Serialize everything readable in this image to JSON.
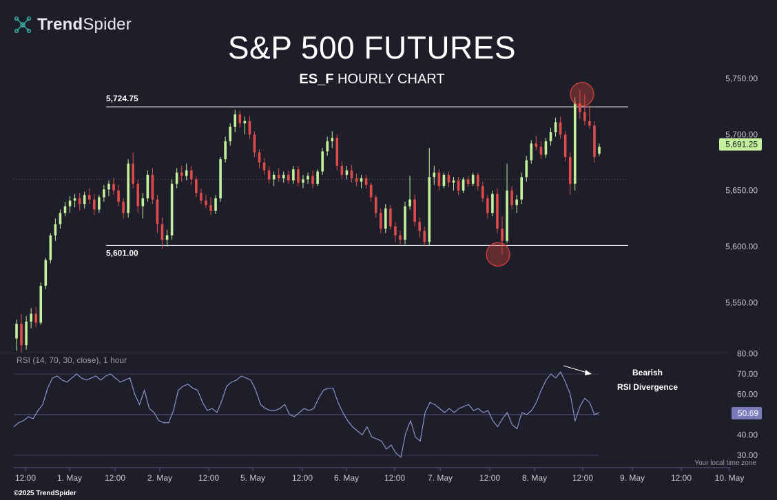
{
  "brand": {
    "name_bold": "Trend",
    "name_regular": "Spider",
    "logo_icon": "network-nodes-icon"
  },
  "copyright": "©2025 TrendSpider",
  "local_time_zone": "Your local time zone",
  "chart_data": [
    {
      "type": "candlestick",
      "title": "S&P 500 FUTURES",
      "subtitle_symbol": "ES_F",
      "subtitle_text": "HOURLY CHART",
      "y_ticks": [
        "5,750.00",
        "5,700.00",
        "5,650.00",
        "5,600.00",
        "5,550.00"
      ],
      "y_tick_values": [
        5750,
        5700,
        5650,
        5600,
        5550
      ],
      "ylim": [
        5505,
        5790
      ],
      "x_ticks": [
        "12:00",
        "1. May",
        "12:00",
        "2. May",
        "12:00",
        "5. May",
        "12:00",
        "6. May",
        "12:00",
        "7. May",
        "12:00",
        "8. May",
        "12:00",
        "9. May",
        "12:00",
        "10. May"
      ],
      "last_price": "5,691.25",
      "reference_price": 5660,
      "resistance": {
        "label": "5,724.75",
        "value": 5724.75
      },
      "support": {
        "label": "5,601.00",
        "value": 5601.0
      },
      "highlights": [
        {
          "point": "top",
          "price": 5736
        },
        {
          "point": "bottom",
          "price": 5593
        }
      ],
      "colors": {
        "up": "#c3f09a",
        "down": "#e04a4a",
        "level_line": "#ffffff",
        "highlight": "#e0443c",
        "last_price_bg": "#c3f09a"
      },
      "candles": [
        [
          5518,
          5535,
          5507,
          5531
        ],
        [
          5531,
          5540,
          5505,
          5512
        ],
        [
          5512,
          5538,
          5508,
          5533
        ],
        [
          5533,
          5545,
          5527,
          5540
        ],
        [
          5540,
          5546,
          5528,
          5532
        ],
        [
          5532,
          5568,
          5530,
          5565
        ],
        [
          5565,
          5590,
          5562,
          5588
        ],
        [
          5588,
          5612,
          5585,
          5610
        ],
        [
          5610,
          5625,
          5605,
          5620
        ],
        [
          5620,
          5633,
          5616,
          5630
        ],
        [
          5630,
          5640,
          5627,
          5636
        ],
        [
          5636,
          5645,
          5630,
          5641
        ],
        [
          5641,
          5647,
          5635,
          5643
        ],
        [
          5643,
          5648,
          5632,
          5638
        ],
        [
          5638,
          5649,
          5634,
          5646
        ],
        [
          5646,
          5652,
          5638,
          5642
        ],
        [
          5642,
          5647,
          5628,
          5633
        ],
        [
          5633,
          5646,
          5630,
          5644
        ],
        [
          5644,
          5655,
          5640,
          5651
        ],
        [
          5651,
          5659,
          5645,
          5656
        ],
        [
          5656,
          5661,
          5646,
          5650
        ],
        [
          5650,
          5655,
          5636,
          5640
        ],
        [
          5640,
          5643,
          5625,
          5630
        ],
        [
          5630,
          5678,
          5626,
          5674
        ],
        [
          5674,
          5684,
          5652,
          5656
        ],
        [
          5656,
          5660,
          5630,
          5636
        ],
        [
          5636,
          5648,
          5625,
          5643
        ],
        [
          5643,
          5668,
          5640,
          5664
        ],
        [
          5664,
          5670,
          5638,
          5642
        ],
        [
          5642,
          5646,
          5612,
          5620
        ],
        [
          5620,
          5626,
          5598,
          5606
        ],
        [
          5606,
          5615,
          5600,
          5610
        ],
        [
          5610,
          5660,
          5606,
          5656
        ],
        [
          5656,
          5670,
          5652,
          5666
        ],
        [
          5666,
          5672,
          5658,
          5663
        ],
        [
          5663,
          5674,
          5659,
          5668
        ],
        [
          5668,
          5672,
          5655,
          5660
        ],
        [
          5660,
          5663,
          5644,
          5648
        ],
        [
          5648,
          5652,
          5638,
          5641
        ],
        [
          5641,
          5646,
          5634,
          5637
        ],
        [
          5637,
          5644,
          5628,
          5632
        ],
        [
          5632,
          5646,
          5629,
          5643
        ],
        [
          5643,
          5680,
          5640,
          5678
        ],
        [
          5678,
          5698,
          5675,
          5694
        ],
        [
          5694,
          5710,
          5690,
          5707
        ],
        [
          5707,
          5722,
          5702,
          5718
        ],
        [
          5718,
          5721,
          5706,
          5710
        ],
        [
          5710,
          5716,
          5700,
          5712
        ],
        [
          5712,
          5717,
          5696,
          5700
        ],
        [
          5700,
          5703,
          5680,
          5684
        ],
        [
          5684,
          5687,
          5670,
          5675
        ],
        [
          5675,
          5679,
          5664,
          5668
        ],
        [
          5668,
          5672,
          5656,
          5660
        ],
        [
          5660,
          5667,
          5654,
          5664
        ],
        [
          5664,
          5670,
          5658,
          5661
        ],
        [
          5661,
          5667,
          5657,
          5664
        ],
        [
          5664,
          5668,
          5656,
          5659
        ],
        [
          5659,
          5672,
          5656,
          5669
        ],
        [
          5669,
          5672,
          5654,
          5657
        ],
        [
          5657,
          5664,
          5652,
          5660
        ],
        [
          5660,
          5666,
          5656,
          5663
        ],
        [
          5663,
          5668,
          5652,
          5656
        ],
        [
          5656,
          5669,
          5654,
          5667
        ],
        [
          5667,
          5688,
          5664,
          5685
        ],
        [
          5685,
          5698,
          5681,
          5694
        ],
        [
          5694,
          5703,
          5688,
          5697
        ],
        [
          5697,
          5700,
          5668,
          5672
        ],
        [
          5672,
          5676,
          5660,
          5664
        ],
        [
          5664,
          5672,
          5660,
          5668
        ],
        [
          5668,
          5673,
          5657,
          5661
        ],
        [
          5661,
          5665,
          5654,
          5658
        ],
        [
          5658,
          5664,
          5652,
          5661
        ],
        [
          5661,
          5664,
          5652,
          5655
        ],
        [
          5655,
          5657,
          5640,
          5644
        ],
        [
          5644,
          5646,
          5626,
          5630
        ],
        [
          5630,
          5634,
          5612,
          5616
        ],
        [
          5616,
          5638,
          5612,
          5634
        ],
        [
          5634,
          5637,
          5615,
          5618
        ],
        [
          5618,
          5622,
          5604,
          5610
        ],
        [
          5610,
          5614,
          5602,
          5606
        ],
        [
          5606,
          5640,
          5602,
          5636
        ],
        [
          5636,
          5663,
          5633,
          5642
        ],
        [
          5642,
          5646,
          5618,
          5622
        ],
        [
          5622,
          5626,
          5608,
          5614
        ],
        [
          5614,
          5618,
          5600,
          5604
        ],
        [
          5604,
          5688,
          5601,
          5662
        ],
        [
          5662,
          5672,
          5655,
          5666
        ],
        [
          5666,
          5669,
          5650,
          5654
        ],
        [
          5654,
          5666,
          5652,
          5664
        ],
        [
          5664,
          5667,
          5653,
          5657
        ],
        [
          5657,
          5662,
          5650,
          5659
        ],
        [
          5659,
          5662,
          5646,
          5650
        ],
        [
          5650,
          5662,
          5648,
          5660
        ],
        [
          5660,
          5663,
          5653,
          5656
        ],
        [
          5656,
          5666,
          5654,
          5664
        ],
        [
          5664,
          5666,
          5650,
          5654
        ],
        [
          5654,
          5658,
          5640,
          5643
        ],
        [
          5643,
          5646,
          5625,
          5630
        ],
        [
          5630,
          5650,
          5627,
          5647
        ],
        [
          5647,
          5652,
          5612,
          5616
        ],
        [
          5616,
          5627,
          5593,
          5605
        ],
        [
          5605,
          5674,
          5603,
          5650
        ],
        [
          5650,
          5654,
          5633,
          5637
        ],
        [
          5637,
          5646,
          5630,
          5642
        ],
        [
          5642,
          5666,
          5638,
          5662
        ],
        [
          5662,
          5681,
          5658,
          5677
        ],
        [
          5677,
          5695,
          5674,
          5692
        ],
        [
          5692,
          5699,
          5686,
          5689
        ],
        [
          5689,
          5694,
          5678,
          5682
        ],
        [
          5682,
          5697,
          5679,
          5694
        ],
        [
          5694,
          5706,
          5690,
          5702
        ],
        [
          5702,
          5715,
          5698,
          5711
        ],
        [
          5711,
          5716,
          5696,
          5700
        ],
        [
          5700,
          5703,
          5676,
          5680
        ],
        [
          5680,
          5684,
          5646,
          5656
        ],
        [
          5656,
          5733,
          5650,
          5728
        ],
        [
          5728,
          5740,
          5714,
          5720
        ],
        [
          5720,
          5736,
          5708,
          5712
        ],
        [
          5712,
          5726,
          5705,
          5708
        ],
        [
          5708,
          5712,
          5675,
          5680
        ],
        [
          5683,
          5692,
          5681,
          5689
        ]
      ]
    },
    {
      "type": "line",
      "indicator_label": "RSI (14, 70, 30, close), 1 hour",
      "y_ticks": [
        "80.00",
        "70.00",
        "60.00",
        "40.00",
        "30.00"
      ],
      "y_tick_values": [
        80,
        70,
        60,
        40,
        30
      ],
      "ylim": [
        27,
        83
      ],
      "band_upper": 70,
      "band_mid": 50,
      "band_lower": 30,
      "last_value": "50.69",
      "annotation": [
        "Bearish",
        "RSI Divergence"
      ],
      "colors": {
        "line": "#9a9ad8",
        "band": "#3a3a55",
        "last_value_bg": "#7a7ab8"
      },
      "values": [
        44,
        46,
        47,
        49,
        48,
        52,
        55,
        63,
        68,
        69,
        67,
        66,
        68,
        70,
        68,
        67,
        68,
        69,
        67,
        69,
        70,
        68,
        66,
        67,
        68,
        60,
        55,
        62,
        53,
        51,
        47,
        46,
        46,
        52,
        62,
        64,
        65,
        63,
        62,
        56,
        52,
        53,
        51,
        57,
        64,
        66,
        67,
        69,
        68,
        67,
        62,
        55,
        53,
        52,
        52,
        53,
        55,
        50,
        49,
        51,
        53,
        52,
        53,
        58,
        62,
        63,
        63,
        56,
        51,
        47,
        44,
        42,
        40,
        44,
        39,
        38,
        37,
        33,
        35,
        31,
        29,
        41,
        47,
        39,
        37,
        51,
        56,
        55,
        53,
        51,
        53,
        51,
        53,
        54,
        55,
        52,
        53,
        51,
        52,
        47,
        44,
        48,
        51,
        45,
        43,
        51,
        50,
        52,
        56,
        62,
        67,
        70,
        68,
        71,
        66,
        60,
        47,
        54,
        58,
        56,
        50,
        51
      ]
    }
  ]
}
